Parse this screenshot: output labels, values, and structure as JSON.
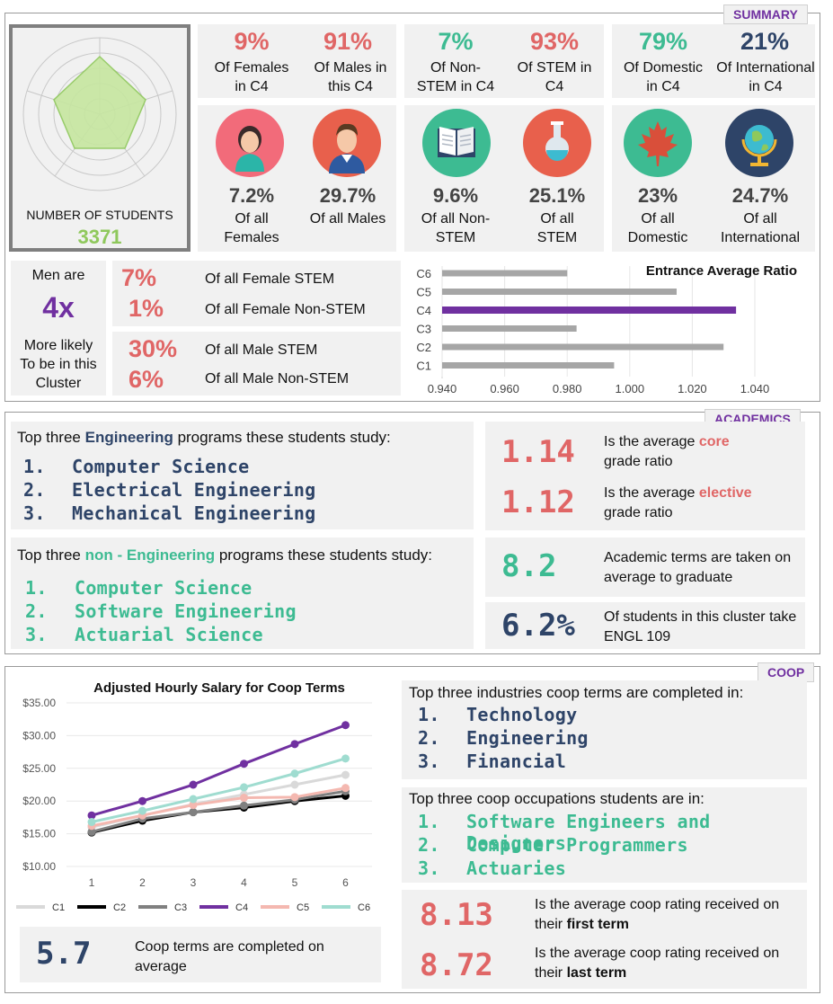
{
  "summary": {
    "tag": "SUMMARY",
    "students_label": "NUMBER OF STUDENTS",
    "students_value": "3371",
    "gender": [
      {
        "pct": "9%",
        "label": "Of Females in C4",
        "sub_pct": "7.2%",
        "sub_label": "Of all Females"
      },
      {
        "pct": "91%",
        "label": "Of Males in this C4",
        "sub_pct": "29.7%",
        "sub_label": "Of all Males"
      }
    ],
    "stem": [
      {
        "pct": "7%",
        "label": "Of Non-STEM in C4",
        "sub_pct": "9.6%",
        "sub_label": "Of all Non-STEM"
      },
      {
        "pct": "93%",
        "label": "Of STEM in C4",
        "sub_pct": "25.1%",
        "sub_label": "Of all STEM"
      }
    ],
    "origin": [
      {
        "pct": "79%",
        "label": "Of Domestic in C4",
        "sub_pct": "23%",
        "sub_label": "Of all Domestic"
      },
      {
        "pct": "21%",
        "label": "Of International in C4",
        "sub_pct": "24.7%",
        "sub_label": "Of all International"
      }
    ],
    "men_likely": {
      "top": "Men are",
      "value": "4x",
      "bottom": "More likely To be in this Cluster"
    },
    "female_stem": [
      {
        "pct": "7%",
        "label": "Of all Female STEM"
      },
      {
        "pct": "1%",
        "label": "Of all Female Non-STEM"
      }
    ],
    "male_stem": [
      {
        "pct": "30%",
        "label": "Of all Male STEM"
      },
      {
        "pct": "6%",
        "label": "Of all Male Non-STEM"
      }
    ]
  },
  "chart_data": [
    {
      "type": "bar",
      "orientation": "horizontal",
      "title": "Entrance Average Ratio",
      "categories": [
        "C6",
        "C5",
        "C4",
        "C3",
        "C2",
        "C1"
      ],
      "values": [
        0.98,
        1.015,
        1.034,
        0.983,
        1.03,
        0.995
      ],
      "highlight": "C4",
      "xlim": [
        0.94,
        1.04
      ],
      "xticks": [
        "0.940",
        "0.960",
        "0.980",
        "1.000",
        "1.020",
        "1.040"
      ],
      "colors": {
        "default": "#a6a6a6",
        "highlight": "#7030a0"
      }
    },
    {
      "type": "line",
      "title": "Adjusted Hourly Salary for Coop Terms",
      "x": [
        1,
        2,
        3,
        4,
        5,
        6
      ],
      "ylim": [
        10,
        35
      ],
      "yticks": [
        "$35.00",
        "$30.00",
        "$25.00",
        "$20.00",
        "$15.00",
        "$10.00"
      ],
      "series": [
        {
          "name": "C1",
          "color": "#d9d9d9",
          "values": [
            16.0,
            17.8,
            19.5,
            21.0,
            22.5,
            24.0
          ]
        },
        {
          "name": "C2",
          "color": "#000000",
          "values": [
            15.2,
            17.0,
            18.3,
            19.0,
            20.0,
            20.8
          ]
        },
        {
          "name": "C3",
          "color": "#808080",
          "values": [
            15.3,
            17.3,
            18.3,
            19.3,
            20.2,
            21.5
          ]
        },
        {
          "name": "C4",
          "color": "#7030a0",
          "values": [
            17.8,
            20.0,
            22.5,
            25.7,
            28.7,
            31.6
          ]
        },
        {
          "name": "C5",
          "color": "#f4b8b0",
          "values": [
            16.2,
            17.8,
            19.4,
            20.5,
            20.6,
            22.0
          ]
        },
        {
          "name": "C6",
          "color": "#9fdcd0",
          "values": [
            16.8,
            18.5,
            20.3,
            22.1,
            24.2,
            26.5
          ]
        }
      ]
    }
  ],
  "academics": {
    "tag": "ACADEMICS",
    "eng_intro": [
      "Top three ",
      "Engineering",
      " programs these students study:"
    ],
    "eng_programs": [
      "Computer Science",
      "Electrical Engineering",
      "Mechanical Engineering"
    ],
    "non_eng_intro": [
      "Top three ",
      "non - Engineering",
      " programs these students study:"
    ],
    "non_eng_programs": [
      "Computer Science",
      "Software Engineering",
      "Actuarial Science"
    ],
    "core": {
      "value": "1.14",
      "pre": "Is the average ",
      "hl": "core",
      "post": "grade ratio"
    },
    "elective": {
      "value": "1.12",
      "pre": "Is the average ",
      "hl": "elective",
      "post": "grade ratio"
    },
    "terms": {
      "value": "8.2",
      "label": "Academic terms are taken on average to graduate"
    },
    "engl": {
      "value": "6.2%",
      "label": "Of students in this cluster take ENGL 109"
    }
  },
  "coop": {
    "tag": "COOP",
    "industries_intro": "Top three industries coop terms are completed in:",
    "industries": [
      "Technology",
      "Engineering",
      "Financial"
    ],
    "occupations_intro": "Top three coop occupations students are in:",
    "occupations": [
      "Software Engineers and Designers",
      "Computer Programmers",
      "Actuaries"
    ],
    "first_rating": {
      "value": "8.13",
      "pre": "Is the average coop rating received on their ",
      "bold": "first term"
    },
    "last_rating": {
      "value": "8.72",
      "pre": "Is the average coop rating received on their ",
      "bold": "last term"
    },
    "terms_avg": {
      "value": "5.7",
      "label": "Coop terms are completed on average"
    }
  },
  "numbers": [
    "1.",
    "2.",
    "3."
  ]
}
